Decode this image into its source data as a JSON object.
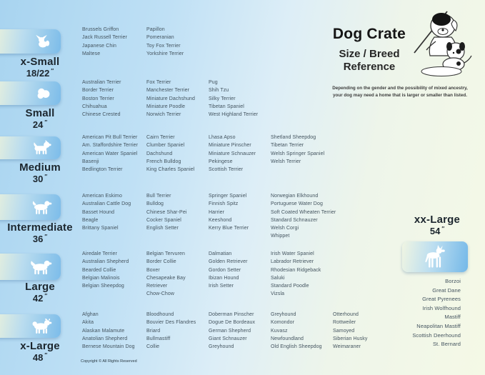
{
  "header": {
    "title": "Dog Crate",
    "subtitle_line1": "Size / Breed",
    "subtitle_line2": "Reference",
    "note_line1": "Depending on the gender and the possibility of mixed ancestry,",
    "note_line2": "your dog may need  a home that is larger or smaller than listed.",
    "illustration": "professor-dog-with-pointer-and-puppy"
  },
  "sizes": [
    {
      "label": "x-Small",
      "dimension": "18/22",
      "unit": "″",
      "icon": "papillon-silhouette"
    },
    {
      "label": "Small",
      "dimension": "24",
      "unit": "″",
      "icon": "shih-tzu-silhouette"
    },
    {
      "label": "Medium",
      "dimension": "30",
      "unit": "″",
      "icon": "terrier-silhouette"
    },
    {
      "label": "Intermediate",
      "dimension": "36",
      "unit": "″",
      "icon": "spaniel-silhouette"
    },
    {
      "label": "Large",
      "dimension": "42",
      "unit": "″",
      "icon": "retriever-silhouette"
    },
    {
      "label": "x-Large",
      "dimension": "48",
      "unit": "″",
      "icon": "akita-silhouette"
    },
    {
      "label": "xx-Large",
      "dimension": "54",
      "unit": "″",
      "icon": "great-dane-silhouette"
    }
  ],
  "breeds": {
    "x_small": [
      [
        "Brussels Griffon",
        "Jack Russell Terrier",
        "Japanese Chin",
        "Maltese"
      ],
      [
        "Papillon",
        "Pomeranian",
        "Toy Fox Terrier",
        "Yorkshire Terrier"
      ]
    ],
    "small": [
      [
        "Australian Terrier",
        "Border Terrier",
        "Boston Terrier",
        "Chihuahua",
        "Chinese Crested"
      ],
      [
        "Fox Terrier",
        "Manchester Terrier",
        "Miniature Dachshund",
        "Miniature Poodle",
        "Norwich Terrier"
      ],
      [
        "Pug",
        "Shih Tzu",
        "Silky Terrier",
        "Tibetan Spaniel",
        "West Highland Terrier"
      ]
    ],
    "medium": [
      [
        "American Pit Bull Terrier",
        "Am. Staffordshire Terrier",
        "American Water Spaniel",
        "Basenji",
        "Bedlington Terrier"
      ],
      [
        "Cairn Terrier",
        "Clumber Spaniel",
        "Dachshund",
        "French Bulldog",
        "King Charles Spaniel"
      ],
      [
        "Lhasa Apso",
        "Miniature Pinscher",
        "Miniature Schnauzer",
        "Pekingese",
        "Scottish Terrier"
      ],
      [
        "Shetland Sheepdog",
        "Tibetan Terrier",
        "Welsh Springer Spaniel",
        "Welsh Terrier"
      ]
    ],
    "intermediate": [
      [
        "American Eskimo",
        "Australian Cattle Dog",
        "Basset Hound",
        "Beagle",
        "Brittany Spaniel"
      ],
      [
        "Bull Terrier",
        "Bulldog",
        "Chinese Shar-Pei",
        "Cocker Spaniel",
        "English Setter"
      ],
      [
        "Springer Spaniel",
        "Finnish Spitz",
        "Harrier",
        "Keeshond",
        "Kerry Blue Terrier"
      ],
      [
        "Norwegian Elkhound",
        "Portuguese Water Dog",
        "Soft Coated Wheaten Terrier",
        "Standard Schnauzer",
        "Welsh Corgi",
        "Whippet"
      ]
    ],
    "large": [
      [
        "Airedale Terrier",
        "Australian Shepherd",
        "Bearded Collie",
        "Belgian Malinois",
        "Belgian Sheepdog"
      ],
      [
        "Belgian Tervuren",
        "Border Collie",
        "Boxer",
        "Chesapeake Bay\nRetriever",
        "Chow-Chow"
      ],
      [
        "Dalmatian",
        "Golden Retriever",
        "Gordon Setter",
        "Ibizan Hound",
        "Irish Setter"
      ],
      [
        "Irish Water Spaniel",
        "Labrador Retriever",
        "Rhodesian Ridgeback",
        "Saluki",
        "Standard Poodle",
        "Vizsla"
      ]
    ],
    "x_large": [
      [
        "Afghan",
        "Akita",
        "Alaskan Malamute",
        "Anatolian Shepherd",
        "Bernese Mountain Dog"
      ],
      [
        "Bloodhound",
        "Bouvier Des Flandres",
        "Briard",
        "Bullmastiff",
        "Collie"
      ],
      [
        "Doberman Pinscher",
        "Dogue De Bordeaux",
        "German Shepherd",
        "Giant Schnauzer",
        "Greyhound"
      ],
      [
        "Greyhound",
        "Komondor",
        "Kuvasz",
        "Newfoundland",
        "Old English Sheepdog"
      ],
      [
        "Otterhound",
        "Rottweiler",
        "Samoyed",
        "Siberian Husky",
        "Weimaraner"
      ]
    ],
    "xx_large": [
      [
        "Borzoi",
        "Great Dane",
        "Great Pyrenees",
        "Irish Wolfhound",
        "Mastiff",
        "Neapolitan Mastiff",
        "Scottish Deerhound",
        "St. Bernard"
      ]
    ]
  },
  "footer": {
    "copyright": "Copyright © All Rights Reserved"
  },
  "colors": {
    "background_left": "#a8d4f0",
    "background_right": "#f5f9e6",
    "box_blue": "#7cbce9",
    "box_pale": "#eef3da",
    "breed_text": "#44545f"
  }
}
